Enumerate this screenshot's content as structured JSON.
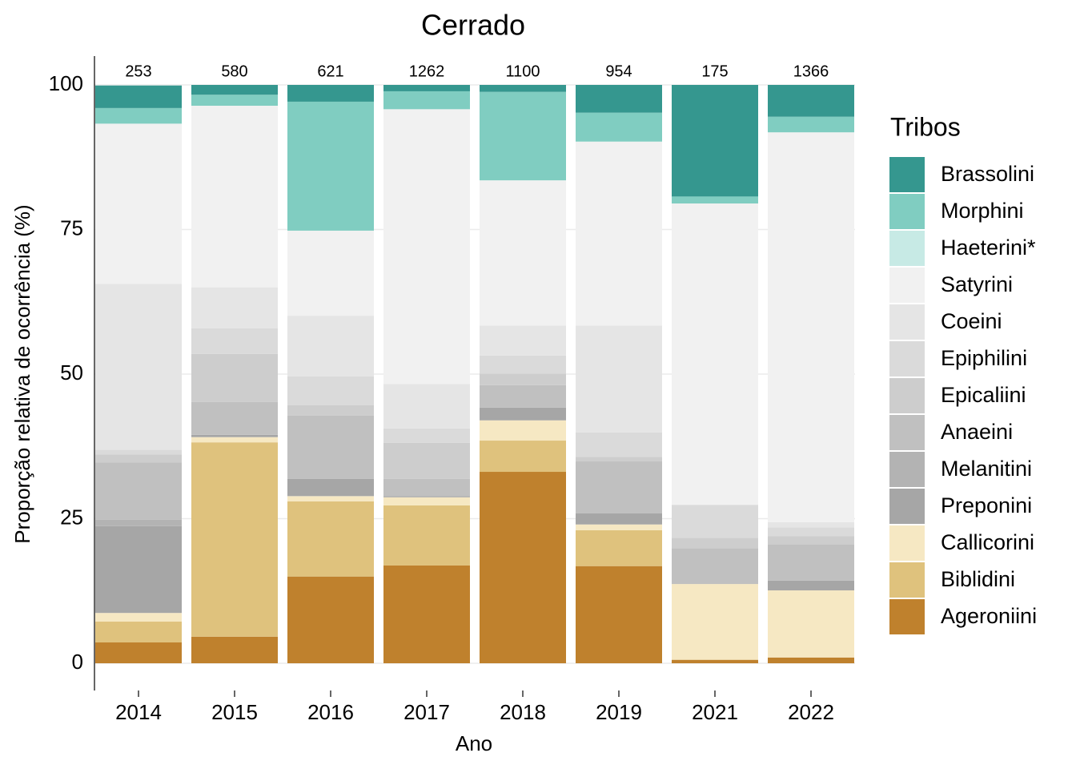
{
  "chart_data": {
    "type": "stacked-bar",
    "title": "Cerrado",
    "x_label": "Ano",
    "y_label": "Proporção relativa de ocorrência (%)",
    "legend_title": "Tribos",
    "legend_position": "right",
    "categories": [
      "2014",
      "2015",
      "2016",
      "2017",
      "2018",
      "2019",
      "2021",
      "2022"
    ],
    "n": [
      253,
      580,
      621,
      1262,
      1100,
      954,
      175,
      1366
    ],
    "ylim": [
      0,
      100
    ],
    "yticks": [
      0,
      25,
      50,
      75,
      100
    ],
    "grid": true,
    "series": [
      {
        "name": "Brassolini",
        "color": "#35978f",
        "values": [
          3.9,
          1.7,
          2.9,
          1.1,
          1.2,
          4.8,
          19.3,
          5.5
        ]
      },
      {
        "name": "Morphini",
        "color": "#80cdc1",
        "values": [
          2.7,
          1.9,
          22.3,
          3.1,
          15.3,
          5.0,
          1.2,
          2.7
        ]
      },
      {
        "name": "Haeterini*",
        "color": "#c7eae5",
        "values": [
          0,
          0,
          0,
          0,
          0,
          0,
          0,
          0
        ]
      },
      {
        "name": "Satyrini",
        "color": "#f1f1f1",
        "values": [
          27.7,
          31.4,
          14.7,
          47.5,
          25.1,
          31.8,
          52.1,
          67.4
        ]
      },
      {
        "name": "Coeini",
        "color": "#e5e5e5",
        "values": [
          28.7,
          7.1,
          10.5,
          7.7,
          5.2,
          18.5,
          0,
          0.9
        ]
      },
      {
        "name": "Epiphilini",
        "color": "#dadada",
        "values": [
          0.8,
          4.4,
          5.0,
          2.5,
          3.1,
          4.2,
          5.7,
          1.5
        ]
      },
      {
        "name": "Epicaliini",
        "color": "#cdcdcd",
        "values": [
          1.4,
          8.3,
          1.8,
          6.2,
          2.0,
          0.8,
          1.8,
          1.4
        ]
      },
      {
        "name": "Anaeini",
        "color": "#c0c0c0",
        "values": [
          9.9,
          5.7,
          10.9,
          3.0,
          3.9,
          9.0,
          6.2,
          6.3
        ]
      },
      {
        "name": "Melanitini",
        "color": "#b3b3b3",
        "values": [
          1.1,
          0,
          0,
          0,
          0,
          0,
          0,
          0
        ]
      },
      {
        "name": "Preponini",
        "color": "#a6a6a6",
        "values": [
          15.0,
          0.4,
          3.0,
          0.2,
          2.2,
          1.9,
          0,
          1.7
        ]
      },
      {
        "name": "Callicorini",
        "color": "#f6e8c3",
        "values": [
          1.5,
          0.9,
          0.9,
          1.4,
          3.5,
          1.0,
          13.1,
          11.6
        ]
      },
      {
        "name": "Biblidini",
        "color": "#dfc27d",
        "values": [
          3.6,
          33.6,
          13.0,
          10.4,
          5.4,
          6.2,
          0,
          0
        ]
      },
      {
        "name": "Ageroniini",
        "color": "#bf812d",
        "values": [
          3.6,
          4.6,
          15.0,
          16.9,
          33.1,
          16.8,
          0.6,
          1.0
        ]
      }
    ]
  }
}
